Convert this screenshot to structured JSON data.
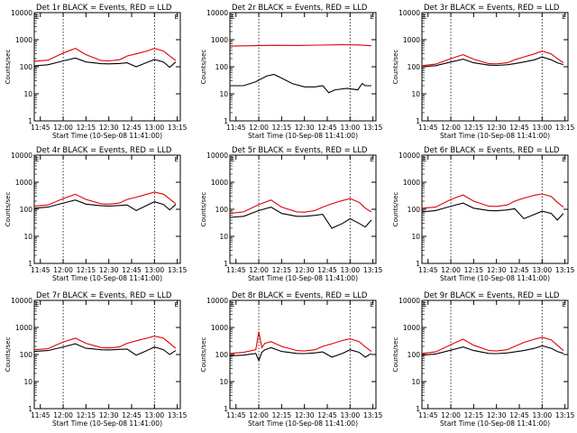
{
  "chart_data": [
    {
      "type": "line",
      "title": "Det 1r BLACK = Events, RED = LLD",
      "xlabel": "Start Time (10-Sep-08 11:41:00)",
      "ylabel": "Counts/sec",
      "x_ticks": [
        "11:45",
        "12:00",
        "12:15",
        "12:30",
        "12:45",
        "13:00",
        "13:15"
      ],
      "y_ticks": [
        "1",
        "10",
        "100",
        "1000",
        "10000"
      ],
      "ylim": [
        1,
        10000
      ],
      "yscale": "log",
      "marker_lines": [
        "12:00",
        "13:00"
      ],
      "top_marker": "E",
      "series": [
        {
          "color": "#000000",
          "x": [
            "11:41",
            "11:50",
            "12:00",
            "12:08",
            "12:15",
            "12:25",
            "12:30",
            "12:37",
            "12:42",
            "12:48",
            "12:55",
            "13:00",
            "13:06",
            "13:10",
            "13:14"
          ],
          "values": [
            108,
            118,
            165,
            210,
            150,
            130,
            128,
            132,
            140,
            100,
            145,
            185,
            150,
            95,
            150
          ]
        },
        {
          "color": "#e00000",
          "x": [
            "11:41",
            "11:50",
            "12:00",
            "12:08",
            "12:15",
            "12:25",
            "12:30",
            "12:37",
            "12:42",
            "12:48",
            "12:55",
            "13:00",
            "13:06",
            "13:10",
            "13:14"
          ],
          "values": [
            160,
            175,
            320,
            480,
            280,
            170,
            165,
            180,
            250,
            300,
            380,
            480,
            380,
            250,
            170
          ]
        }
      ]
    },
    {
      "type": "line",
      "title": "Det 2r BLACK = Events, RED = LLD",
      "xlabel": "Start Time (10-Sep-08 11:41:00)",
      "ylabel": "Counts/sec",
      "x_ticks": [
        "11:45",
        "12:00",
        "12:15",
        "12:30",
        "12:45",
        "13:00",
        "13:15"
      ],
      "y_ticks": [
        "1",
        "10",
        "100",
        "1000",
        "10000"
      ],
      "ylim": [
        1,
        10000
      ],
      "yscale": "log",
      "marker_lines": [
        "12:00",
        "13:00"
      ],
      "top_marker": "E",
      "series": [
        {
          "color": "#000000",
          "x": [
            "11:41",
            "11:50",
            "11:58",
            "12:05",
            "12:10",
            "12:15",
            "12:22",
            "12:30",
            "12:37",
            "12:42",
            "12:46",
            "12:50",
            "12:58",
            "13:05",
            "13:08",
            "13:10",
            "13:14"
          ],
          "values": [
            20,
            20,
            28,
            45,
            52,
            38,
            24,
            18,
            18,
            20,
            11,
            14,
            16,
            14,
            24,
            20,
            20
          ]
        },
        {
          "color": "#e00000",
          "x": [
            "11:41",
            "11:55",
            "12:10",
            "12:25",
            "12:40",
            "12:55",
            "13:05",
            "13:14"
          ],
          "values": [
            580,
            600,
            620,
            610,
            630,
            650,
            640,
            600
          ]
        }
      ]
    },
    {
      "type": "line",
      "title": "Det 3r BLACK = Events, RED = LLD",
      "xlabel": "Start Time (10-Sep-08 11:41:00)",
      "ylabel": "Counts/sec",
      "x_ticks": [
        "11:45",
        "12:00",
        "12:15",
        "12:30",
        "12:45",
        "13:00",
        "13:15"
      ],
      "y_ticks": [
        "1",
        "10",
        "100",
        "1000",
        "10000"
      ],
      "ylim": [
        1,
        10000
      ],
      "yscale": "log",
      "marker_lines": [
        "12:00",
        "13:00"
      ],
      "top_marker": "E",
      "series": [
        {
          "color": "#000000",
          "x": [
            "11:41",
            "11:50",
            "12:00",
            "12:08",
            "12:15",
            "12:25",
            "12:30",
            "12:37",
            "12:42",
            "12:48",
            "12:55",
            "13:00",
            "13:06",
            "13:10",
            "13:14"
          ],
          "values": [
            100,
            110,
            150,
            190,
            140,
            115,
            112,
            118,
            130,
            150,
            180,
            230,
            180,
            140,
            120
          ]
        },
        {
          "color": "#e00000",
          "x": [
            "11:41",
            "11:50",
            "12:00",
            "12:08",
            "12:15",
            "12:25",
            "12:30",
            "12:37",
            "12:42",
            "12:48",
            "12:55",
            "13:00",
            "13:06",
            "13:10",
            "13:14"
          ],
          "values": [
            110,
            125,
            200,
            280,
            190,
            130,
            128,
            140,
            180,
            230,
            300,
            380,
            300,
            200,
            140
          ]
        }
      ]
    },
    {
      "type": "line",
      "title": "Det 4r BLACK = Events, RED = LLD",
      "xlabel": "Start Time (10-Sep-08 11:41:00)",
      "ylabel": "Counts/sec",
      "x_ticks": [
        "11:45",
        "12:00",
        "12:15",
        "12:30",
        "12:45",
        "13:00",
        "13:15"
      ],
      "y_ticks": [
        "1",
        "10",
        "100",
        "1000",
        "10000"
      ],
      "ylim": [
        1,
        10000
      ],
      "yscale": "log",
      "marker_lines": [
        "12:00",
        "13:00"
      ],
      "top_marker": "E",
      "series": [
        {
          "color": "#000000",
          "x": [
            "11:41",
            "11:50",
            "12:00",
            "12:08",
            "12:15",
            "12:25",
            "12:30",
            "12:37",
            "12:42",
            "12:48",
            "12:55",
            "13:00",
            "13:06",
            "13:10",
            "13:14"
          ],
          "values": [
            110,
            120,
            170,
            220,
            155,
            135,
            132,
            138,
            145,
            90,
            140,
            190,
            150,
            95,
            150
          ]
        },
        {
          "color": "#e00000",
          "x": [
            "11:41",
            "11:50",
            "12:00",
            "12:08",
            "12:15",
            "12:25",
            "12:30",
            "12:37",
            "12:42",
            "12:48",
            "12:55",
            "13:00",
            "13:06",
            "13:10",
            "13:14"
          ],
          "values": [
            130,
            145,
            250,
            360,
            230,
            160,
            155,
            170,
            230,
            280,
            360,
            430,
            360,
            240,
            160
          ]
        }
      ]
    },
    {
      "type": "line",
      "title": "Det 5r BLACK = Events, RED = LLD",
      "xlabel": "Start Time (10-Sep-08 11:41:00)",
      "ylabel": "Counts/sec",
      "x_ticks": [
        "11:45",
        "12:00",
        "12:15",
        "12:30",
        "12:45",
        "13:00",
        "13:15"
      ],
      "y_ticks": [
        "1",
        "10",
        "100",
        "1000",
        "10000"
      ],
      "ylim": [
        1,
        10000
      ],
      "yscale": "log",
      "marker_lines": [
        "12:00",
        "13:00"
      ],
      "top_marker": "E",
      "series": [
        {
          "color": "#000000",
          "x": [
            "11:41",
            "11:50",
            "12:00",
            "12:08",
            "12:15",
            "12:25",
            "12:30",
            "12:37",
            "12:42",
            "12:48",
            "12:55",
            "13:00",
            "13:06",
            "13:10",
            "13:14"
          ],
          "values": [
            50,
            55,
            90,
            120,
            70,
            55,
            55,
            60,
            65,
            20,
            30,
            45,
            30,
            22,
            40
          ]
        },
        {
          "color": "#e00000",
          "x": [
            "11:41",
            "11:50",
            "12:00",
            "12:08",
            "12:15",
            "12:25",
            "12:30",
            "12:37",
            "12:42",
            "12:48",
            "12:55",
            "13:00",
            "13:06",
            "13:10",
            "13:14"
          ],
          "values": [
            70,
            80,
            150,
            220,
            120,
            80,
            78,
            90,
            120,
            160,
            210,
            250,
            180,
            110,
            80
          ]
        }
      ]
    },
    {
      "type": "line",
      "title": "Det 6r BLACK = Events, RED = LLD",
      "xlabel": "Start Time (10-Sep-08 11:41:00)",
      "ylabel": "Counts/sec",
      "x_ticks": [
        "11:45",
        "12:00",
        "12:15",
        "12:30",
        "12:45",
        "13:00",
        "13:15"
      ],
      "y_ticks": [
        "1",
        "10",
        "100",
        "1000",
        "10000"
      ],
      "ylim": [
        1,
        10000
      ],
      "yscale": "log",
      "marker_lines": [
        "12:00",
        "13:00"
      ],
      "top_marker": "E",
      "series": [
        {
          "color": "#000000",
          "x": [
            "11:41",
            "11:50",
            "12:00",
            "12:08",
            "12:15",
            "12:25",
            "12:30",
            "12:37",
            "12:42",
            "12:48",
            "12:55",
            "13:00",
            "13:06",
            "13:10",
            "13:14"
          ],
          "values": [
            80,
            90,
            130,
            170,
            110,
            90,
            88,
            95,
            105,
            45,
            65,
            85,
            70,
            40,
            70
          ]
        },
        {
          "color": "#e00000",
          "x": [
            "11:41",
            "11:50",
            "12:00",
            "12:08",
            "12:15",
            "12:25",
            "12:30",
            "12:37",
            "12:42",
            "12:48",
            "12:55",
            "13:00",
            "13:06",
            "13:10",
            "13:14"
          ],
          "values": [
            110,
            120,
            230,
            340,
            200,
            130,
            128,
            145,
            200,
            260,
            330,
            370,
            300,
            180,
            120
          ]
        }
      ]
    },
    {
      "type": "line",
      "title": "Det 7r BLACK = Events, RED = LLD",
      "xlabel": "Start Time (10-Sep-08 11:41:00)",
      "ylabel": "Counts/sec",
      "x_ticks": [
        "11:45",
        "12:00",
        "12:15",
        "12:30",
        "12:45",
        "13:00",
        "13:15"
      ],
      "y_ticks": [
        "1",
        "10",
        "100",
        "1000",
        "10000"
      ],
      "ylim": [
        1,
        10000
      ],
      "yscale": "log",
      "marker_lines": [
        "12:00",
        "13:00"
      ],
      "top_marker": "E",
      "series": [
        {
          "color": "#000000",
          "x": [
            "11:41",
            "11:50",
            "12:00",
            "12:08",
            "12:15",
            "12:25",
            "12:30",
            "12:37",
            "12:42",
            "12:48",
            "12:55",
            "13:00",
            "13:06",
            "13:10",
            "13:14"
          ],
          "values": [
            130,
            140,
            190,
            250,
            170,
            150,
            148,
            155,
            160,
            95,
            140,
            190,
            150,
            100,
            140
          ]
        },
        {
          "color": "#e00000",
          "x": [
            "11:41",
            "11:50",
            "12:00",
            "12:08",
            "12:15",
            "12:25",
            "12:30",
            "12:37",
            "12:42",
            "12:48",
            "12:55",
            "13:00",
            "13:06",
            "13:10",
            "13:14"
          ],
          "values": [
            150,
            165,
            290,
            400,
            260,
            180,
            175,
            190,
            260,
            320,
            400,
            480,
            400,
            260,
            170
          ]
        }
      ]
    },
    {
      "type": "line",
      "title": "Det 8r BLACK = Events, RED = LLD",
      "xlabel": "Start Time (10-Sep-08 11:41:00)",
      "ylabel": "Counts/sec",
      "x_ticks": [
        "11:45",
        "12:00",
        "12:15",
        "12:30",
        "12:45",
        "13:00",
        "13:15"
      ],
      "y_ticks": [
        "1",
        "10",
        "100",
        "1000",
        "10000"
      ],
      "ylim": [
        1,
        10000
      ],
      "yscale": "log",
      "marker_lines": [
        "12:00",
        "13:00"
      ],
      "top_marker": "E",
      "series": [
        {
          "color": "#000000",
          "x": [
            "11:41",
            "11:50",
            "11:58",
            "12:00",
            "12:02",
            "12:04",
            "12:08",
            "12:15",
            "12:25",
            "12:30",
            "12:37",
            "12:42",
            "12:48",
            "12:55",
            "13:00",
            "13:06",
            "13:10",
            "13:14"
          ],
          "values": [
            90,
            95,
            110,
            60,
            120,
            150,
            180,
            130,
            110,
            108,
            115,
            125,
            80,
            110,
            150,
            120,
            80,
            110
          ]
        },
        {
          "color": "#e00000",
          "x": [
            "11:41",
            "11:50",
            "11:58",
            "12:00",
            "12:02",
            "12:04",
            "12:08",
            "12:15",
            "12:25",
            "12:30",
            "12:37",
            "12:42",
            "12:48",
            "12:55",
            "13:00",
            "13:06",
            "13:10",
            "13:14"
          ],
          "values": [
            110,
            120,
            150,
            700,
            180,
            260,
            300,
            200,
            140,
            135,
            150,
            200,
            250,
            330,
            380,
            300,
            190,
            130
          ]
        }
      ]
    },
    {
      "type": "line",
      "title": "Det 9r BLACK = Events, RED = LLD",
      "xlabel": "Start Time (10-Sep-08 11:41:00)",
      "ylabel": "Counts/sec",
      "x_ticks": [
        "11:45",
        "12:00",
        "12:15",
        "12:30",
        "12:45",
        "13:00",
        "13:15"
      ],
      "y_ticks": [
        "1",
        "10",
        "100",
        "1000",
        "10000"
      ],
      "ylim": [
        1,
        10000
      ],
      "yscale": "log",
      "marker_lines": [
        "12:00",
        "13:00"
      ],
      "top_marker": "E",
      "series": [
        {
          "color": "#000000",
          "x": [
            "11:41",
            "11:50",
            "12:00",
            "12:08",
            "12:15",
            "12:25",
            "12:30",
            "12:37",
            "12:42",
            "12:48",
            "12:55",
            "13:00",
            "13:06",
            "13:10",
            "13:14"
          ],
          "values": [
            95,
            105,
            145,
            190,
            140,
            110,
            108,
            114,
            125,
            140,
            170,
            210,
            170,
            130,
            110
          ]
        },
        {
          "color": "#e00000",
          "x": [
            "11:41",
            "11:50",
            "12:00",
            "12:08",
            "12:15",
            "12:25",
            "12:30",
            "12:37",
            "12:42",
            "12:48",
            "12:55",
            "13:00",
            "13:06",
            "13:10",
            "13:14"
          ],
          "values": [
            110,
            125,
            230,
            370,
            220,
            140,
            135,
            150,
            200,
            280,
            370,
            430,
            350,
            220,
            140
          ]
        }
      ]
    }
  ]
}
